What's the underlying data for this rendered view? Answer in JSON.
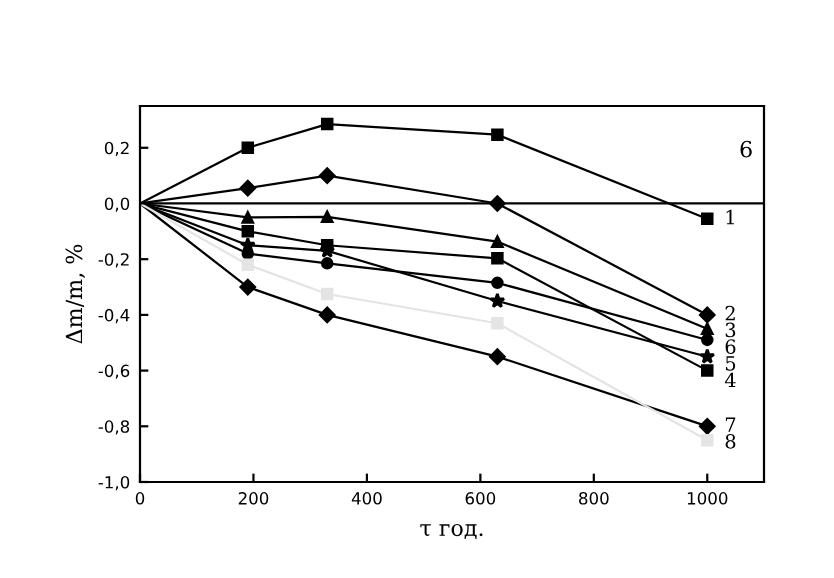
{
  "chart_data": {
    "type": "line",
    "xlabel": "τ год.",
    "ylabel": "Δm/m, %",
    "xlim": [
      0,
      1100
    ],
    "xticks": [
      0,
      200,
      400,
      600,
      800,
      1000
    ],
    "ylim": [
      -1.0,
      0.35
    ],
    "yticks": [
      {
        "value": -1.0,
        "label": "-1,0"
      },
      {
        "value": -0.8,
        "label": "-0,8"
      },
      {
        "value": -0.6,
        "label": "-0,6"
      },
      {
        "value": -0.4,
        "label": "-0,4"
      },
      {
        "value": -0.2,
        "label": "-0,2"
      },
      {
        "value": 0.0,
        "label": "0,0"
      },
      {
        "value": 0.2,
        "label": "0,2"
      }
    ],
    "x": [
      0,
      190,
      330,
      630,
      1000
    ],
    "grid": false,
    "line_style": "solid",
    "ref_lines": [
      {
        "axis": "y",
        "value": 0,
        "color": "#000000"
      }
    ],
    "annotations": [
      "6"
    ],
    "series": [
      {
        "name": "1",
        "color": "#000000",
        "marker": "square",
        "values": [
          0,
          0.2,
          0.285,
          0.247,
          -0.055
        ]
      },
      {
        "name": "2",
        "color": "#000000",
        "marker": "diamond",
        "values": [
          0,
          0.055,
          0.1,
          0.0,
          -0.4
        ]
      },
      {
        "name": "3",
        "color": "#000000",
        "marker": "triangle",
        "values": [
          0,
          -0.05,
          -0.048,
          -0.137,
          -0.45
        ]
      },
      {
        "name": "4",
        "color": "#000000",
        "marker": "square",
        "values": [
          0,
          -0.1,
          -0.15,
          -0.197,
          -0.6
        ]
      },
      {
        "name": "5",
        "color": "#000000",
        "marker": "star",
        "values": [
          0,
          -0.15,
          -0.17,
          -0.35,
          -0.55
        ]
      },
      {
        "name": "6",
        "color": "#000000",
        "marker": "circle",
        "values": [
          0,
          -0.18,
          -0.215,
          -0.285,
          -0.49
        ]
      },
      {
        "name": "7",
        "color": "#000000",
        "marker": "diamond",
        "values": [
          0,
          -0.3,
          -0.4,
          -0.55,
          -0.8
        ]
      },
      {
        "name": "8",
        "color": "#e4e4e4",
        "marker": "square",
        "values": [
          0,
          -0.22,
          -0.325,
          -0.43,
          -0.85
        ]
      }
    ]
  }
}
